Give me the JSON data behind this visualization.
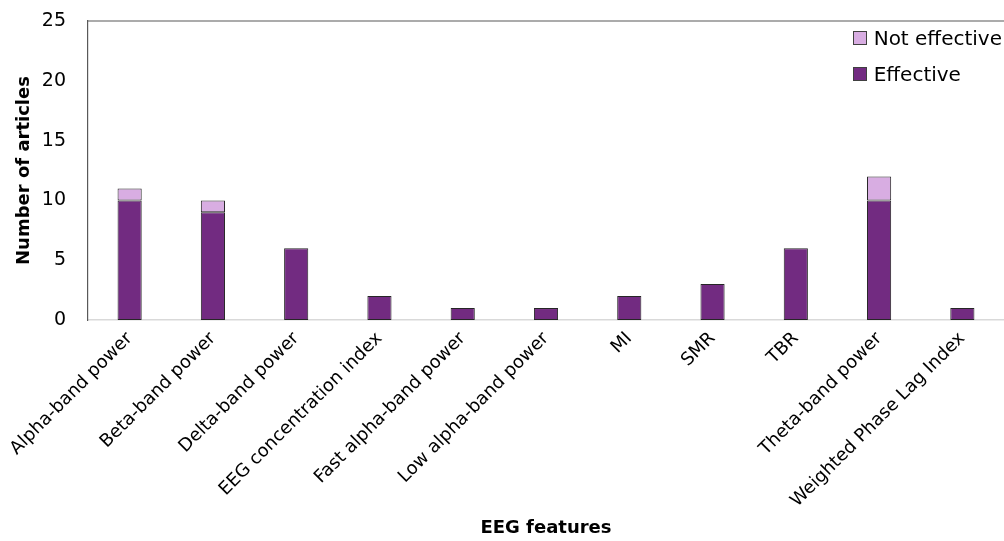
{
  "chart_data": {
    "type": "bar",
    "xlabel": "EEG features",
    "ylabel": "Number of articles",
    "categories": [
      "Alpha-band power",
      "Beta-band power",
      "Delta-band power",
      "EEG concentration index",
      "Fast alpha-band power",
      "Low alpha-band power",
      "MI",
      "SMR",
      "TBR",
      "Theta-band power",
      "Weighted Phase Lag Index"
    ],
    "series": [
      {
        "name": "Effective",
        "color": "#722b81",
        "values": [
          10,
          9,
          6,
          2,
          1,
          1,
          2,
          3,
          6,
          10,
          1
        ]
      },
      {
        "name": "Not effective",
        "color": "#d8ade2",
        "values": [
          1,
          1,
          0,
          0,
          0,
          0,
          0,
          0,
          0,
          2,
          0
        ]
      }
    ],
    "stacked": true,
    "ylim": [
      0,
      25
    ],
    "yticks": [
      0,
      5,
      10,
      15,
      20,
      25
    ],
    "legend": "top right"
  }
}
